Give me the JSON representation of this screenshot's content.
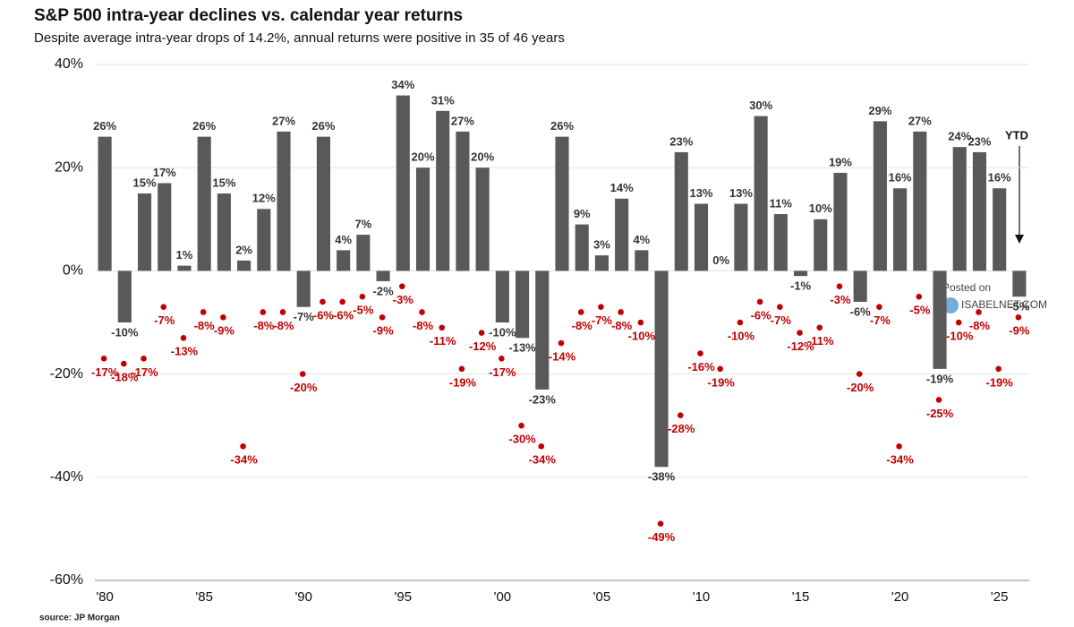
{
  "chart_data": {
    "type": "bar",
    "title": "S&P 500 intra-year declines vs. calendar year returns",
    "subtitle": "Despite average intra-year drops of 14.2%, annual returns were positive in 35 of 46 years",
    "source": "source: JP Morgan",
    "annotation": "YTD",
    "watermark": [
      "Posted on",
      "ISABELNET.COM"
    ],
    "categories": [
      "'80",
      null,
      null,
      null,
      null,
      "'85",
      null,
      null,
      null,
      null,
      "'90",
      null,
      null,
      null,
      null,
      "'95",
      null,
      null,
      null,
      null,
      "'00",
      null,
      null,
      null,
      null,
      "'05",
      null,
      null,
      null,
      null,
      "'10",
      null,
      null,
      null,
      null,
      "'15",
      null,
      null,
      null,
      null,
      "'20",
      null,
      null,
      null,
      null,
      "'25",
      null
    ],
    "series": [
      {
        "type": "bar",
        "color": "#595959",
        "values": [
          26,
          -10,
          15,
          17,
          1,
          26,
          15,
          2,
          12,
          27,
          -7,
          26,
          4,
          7,
          -2,
          34,
          20,
          31,
          27,
          20,
          -10,
          -13,
          -23,
          26,
          9,
          3,
          14,
          4,
          -38,
          23,
          13,
          0,
          13,
          30,
          11,
          -1,
          10,
          19,
          -6,
          29,
          16,
          27,
          -19,
          24,
          23,
          16,
          -5
        ],
        "value_labels": [
          "26%",
          "-10%",
          "15%",
          "17%",
          "1%",
          "26%",
          "15%",
          "2%",
          "12%",
          "27%",
          "-7%",
          "26%",
          "4%",
          "7%",
          "-2%",
          "34%",
          "20%",
          "31%",
          "27%",
          "20%",
          "-10%",
          "-13%",
          "-23%",
          "26%",
          "9%",
          "3%",
          "14%",
          "4%",
          "-38%",
          "23%",
          "13%",
          "0%",
          "13%",
          "30%",
          "11%",
          "-1%",
          "10%",
          "19%",
          "-6%",
          "29%",
          "16%",
          "27%",
          "-19%",
          "24%",
          "23%",
          "16%",
          "-5%"
        ]
      },
      {
        "type": "dot",
        "color": "#c00000",
        "values": [
          -17,
          -18,
          -17,
          -7,
          -13,
          -8,
          -9,
          -34,
          -8,
          -8,
          -20,
          -6,
          -6,
          -5,
          -9,
          -3,
          -8,
          -11,
          -19,
          -12,
          -17,
          -30,
          -34,
          -14,
          -8,
          -7,
          -8,
          -10,
          -49,
          -28,
          -16,
          -19,
          -10,
          -6,
          -7,
          -12,
          -11,
          -3,
          -20,
          -7,
          -34,
          -5,
          -25,
          -10,
          -8,
          -19,
          -9
        ],
        "value_labels": [
          "-17%",
          "-18%",
          "-17%",
          "-7%",
          "-13%",
          "-8%",
          "-9%",
          "-34%",
          "-8%",
          "-8%",
          "-20%",
          "-6%",
          "-6%",
          "-5%",
          "-9%",
          "-3%",
          "-8%",
          "-11%",
          "-19%",
          "-12%",
          "-17%",
          "-30%",
          "-34%",
          "-14%",
          "-8%",
          "-7%",
          "-8%",
          "-10%",
          "-49%",
          "-28%",
          "-16%",
          "-19%",
          "-10%",
          "-6%",
          "-7%",
          "-12%",
          "-11%",
          "-3%",
          "-20%",
          "-7%",
          "-34%",
          "-5%",
          "-25%",
          "-10%",
          "-8%",
          "-19%",
          "-9%"
        ]
      }
    ],
    "ylim": [
      -60,
      40
    ],
    "yticks": [
      {
        "value": -60,
        "label": "-60%"
      },
      {
        "value": -40,
        "label": "-40%"
      },
      {
        "value": -20,
        "label": "-20%"
      },
      {
        "value": 0,
        "label": "0%"
      },
      {
        "value": 20,
        "label": "20%"
      },
      {
        "value": 40,
        "label": "40%"
      }
    ],
    "grid": true
  }
}
